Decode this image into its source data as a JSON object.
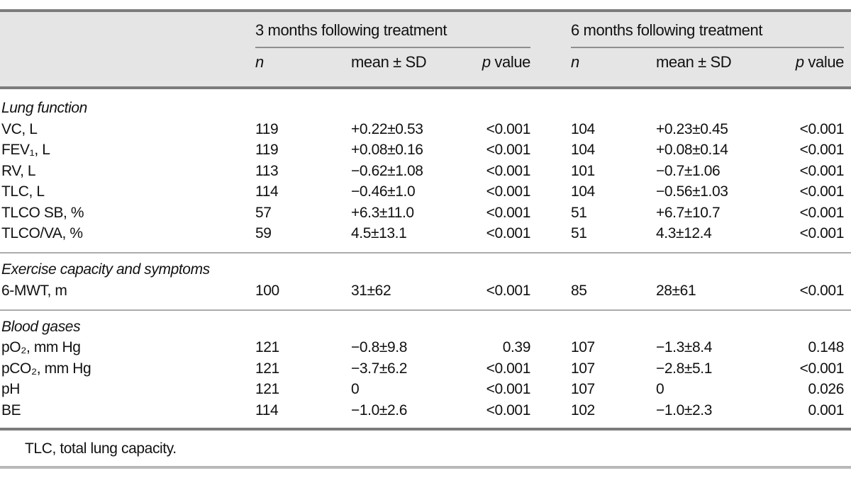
{
  "header": {
    "groups": [
      {
        "title": "3 months following treatment"
      },
      {
        "title": "6 months following treatment"
      }
    ],
    "subheaders": {
      "n": "n",
      "mean": "mean ± SD",
      "p": "p",
      "p_suffix": " value"
    }
  },
  "table": {
    "sections": [
      {
        "title": "Lung function",
        "rows": [
          {
            "label": "VC, L",
            "n3": "119",
            "mean3": "+0.22±0.53",
            "p3": "<0.001",
            "n6": "104",
            "mean6": "+0.23±0.45",
            "p6": "<0.001"
          },
          {
            "label": "FEV₁, L",
            "n3": "119",
            "mean3": "+0.08±0.16",
            "p3": "<0.001",
            "n6": "104",
            "mean6": "+0.08±0.14",
            "p6": "<0.001"
          },
          {
            "label": "RV, L",
            "n3": "113",
            "mean3": "−0.62±1.08",
            "p3": "<0.001",
            "n6": "101",
            "mean6": "−0.7±1.06",
            "p6": "<0.001"
          },
          {
            "label": "TLC, L",
            "n3": "114",
            "mean3": "−0.46±1.0",
            "p3": "<0.001",
            "n6": "104",
            "mean6": "−0.56±1.03",
            "p6": "<0.001"
          },
          {
            "label": "TLCO SB, %",
            "n3": "57",
            "mean3": "+6.3±11.0",
            "p3": "<0.001",
            "n6": "51",
            "mean6": "+6.7±10.7",
            "p6": "<0.001"
          },
          {
            "label": "TLCO/VA, %",
            "n3": "59",
            "mean3": "4.5±13.1",
            "p3": "<0.001",
            "n6": "51",
            "mean6": "4.3±12.4",
            "p6": "<0.001"
          }
        ]
      },
      {
        "title": "Exercise capacity and symptoms",
        "rows": [
          {
            "label": "6-MWT, m",
            "n3": "100",
            "mean3": "31±62",
            "p3": "<0.001",
            "n6": "85",
            "mean6": "28±61",
            "p6": "<0.001"
          }
        ]
      },
      {
        "title": "Blood gases",
        "rows": [
          {
            "label": "pO₂, mm Hg",
            "n3": "121",
            "mean3": "−0.8±9.8",
            "p3": "0.39",
            "n6": "107",
            "mean6": "−1.3±8.4",
            "p6": "0.148"
          },
          {
            "label": "pCO₂, mm Hg",
            "n3": "121",
            "mean3": "−3.7±6.2",
            "p3": "<0.001",
            "n6": "107",
            "mean6": "−2.8±5.1",
            "p6": "<0.001"
          },
          {
            "label": "pH",
            "n3": "121",
            "mean3": "0",
            "p3": "<0.001",
            "n6": "107",
            "mean6": "0",
            "p6": "0.026"
          },
          {
            "label": "BE",
            "n3": "114",
            "mean3": "−1.0±2.6",
            "p3": "<0.001",
            "n6": "102",
            "mean6": "−1.0±2.3",
            "p6": "0.001"
          }
        ]
      }
    ],
    "footnote": "TLC, total lung capacity."
  }
}
